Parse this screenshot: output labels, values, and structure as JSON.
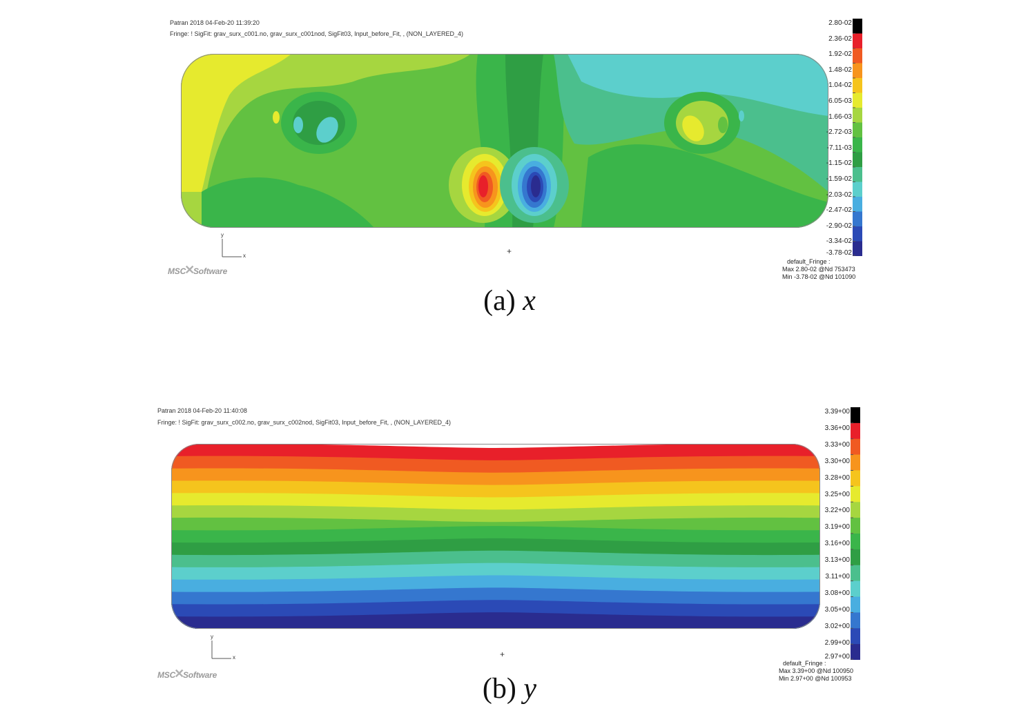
{
  "panels": [
    {
      "id": "a",
      "header": {
        "line1": "Patran 2018 04-Feb-20 11:39:20",
        "line2": "Fringe: ! SigFit: grav_surx_c001.no, grav_surx_c001nod, SigFit03, Input_before_Fit, , (NON_LAYERED_4)"
      },
      "legend": {
        "labels": [
          "2.80-02",
          "2.36-02",
          "1.92-02",
          "1.48-02",
          "1.04-02",
          "6.05-03",
          "1.66-03",
          "-2.72-03",
          "-7.11-03",
          "-1.15-02",
          "-1.59-02",
          "-2.03-02",
          "-2.47-02",
          "-2.90-02",
          "-3.34-02",
          "-3.78-02"
        ],
        "colors": [
          "#000000",
          "#e8202a",
          "#f05a22",
          "#f7941d",
          "#f5c41d",
          "#e6ea2e",
          "#a6d640",
          "#62c141",
          "#3ab54a",
          "#2f9e44",
          "#4bbf8d",
          "#5ccfcc",
          "#49aee0",
          "#3577cf",
          "#2b4ab6",
          "#2a2c8f"
        ],
        "footer": [
          "default_Fringe :",
          "Max 2.80-02 @Nd 753473",
          "Min -3.78-02 @Nd 101090"
        ]
      },
      "axis": {
        "y": "y",
        "x": "x"
      },
      "logo": {
        "prefix": "MSC",
        "mark": "✕",
        "suffix": "Software"
      },
      "crosshair": "+",
      "caption": {
        "label": "(a)",
        "var": "x"
      }
    },
    {
      "id": "b",
      "header": {
        "line1": "Patran 2018 04-Feb-20 11:40:08",
        "line2": "Fringe: ! SigFit: grav_surx_c002.no, grav_surx_c002nod, SigFit03, Input_before_Fit, , (NON_LAYERED_4)"
      },
      "legend": {
        "labels": [
          "3.39+00",
          "3.36+00",
          "3.33+00",
          "3.30+00",
          "3.28+00",
          "3.25+00",
          "3.22+00",
          "3.19+00",
          "3.16+00",
          "3.13+00",
          "3.11+00",
          "3.08+00",
          "3.05+00",
          "3.02+00",
          "2.99+00",
          "2.97+00"
        ],
        "colors": [
          "#000000",
          "#e8202a",
          "#f05a22",
          "#f7941d",
          "#f5c41d",
          "#e6ea2e",
          "#a6d640",
          "#62c141",
          "#3ab54a",
          "#2f9e44",
          "#4bbf8d",
          "#5ccfcc",
          "#49aee0",
          "#3577cf",
          "#2b4ab6",
          "#2a2c8f"
        ],
        "footer": [
          "default_Fringe :",
          "Max 3.39+00 @Nd 100950",
          "Min 2.97+00 @Nd 100953"
        ]
      },
      "axis": {
        "y": "y",
        "x": "x"
      },
      "logo": {
        "prefix": "MSC",
        "mark": "✕",
        "suffix": "Software"
      },
      "crosshair": "+",
      "caption": {
        "label": "(b)",
        "var": "y"
      }
    }
  ]
}
